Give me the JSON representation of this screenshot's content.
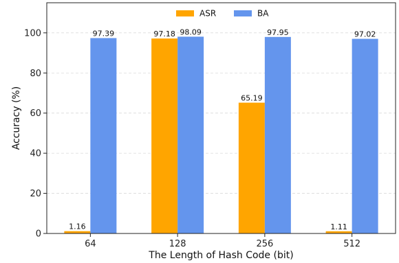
{
  "chart_data": {
    "type": "bar",
    "categories": [
      "64",
      "128",
      "256",
      "512"
    ],
    "series": [
      {
        "name": "ASR",
        "values": [
          1.16,
          97.18,
          65.19,
          1.11
        ],
        "color": "#FFA500"
      },
      {
        "name": "BA",
        "values": [
          97.39,
          98.09,
          97.95,
          97.02
        ],
        "color": "#6495ED"
      }
    ],
    "data_labels": [
      [
        "1.16",
        "97.18",
        "65.19",
        "1.11"
      ],
      [
        "97.39",
        "98.09",
        "97.95",
        "97.02"
      ]
    ],
    "xlabel": "The Length of Hash Code (bit)",
    "ylabel": "Accuracy (%)",
    "ylim": [
      0,
      115
    ],
    "yticks": [
      0,
      20,
      40,
      60,
      80,
      100
    ],
    "grid": true,
    "legend_position": "top-center"
  }
}
